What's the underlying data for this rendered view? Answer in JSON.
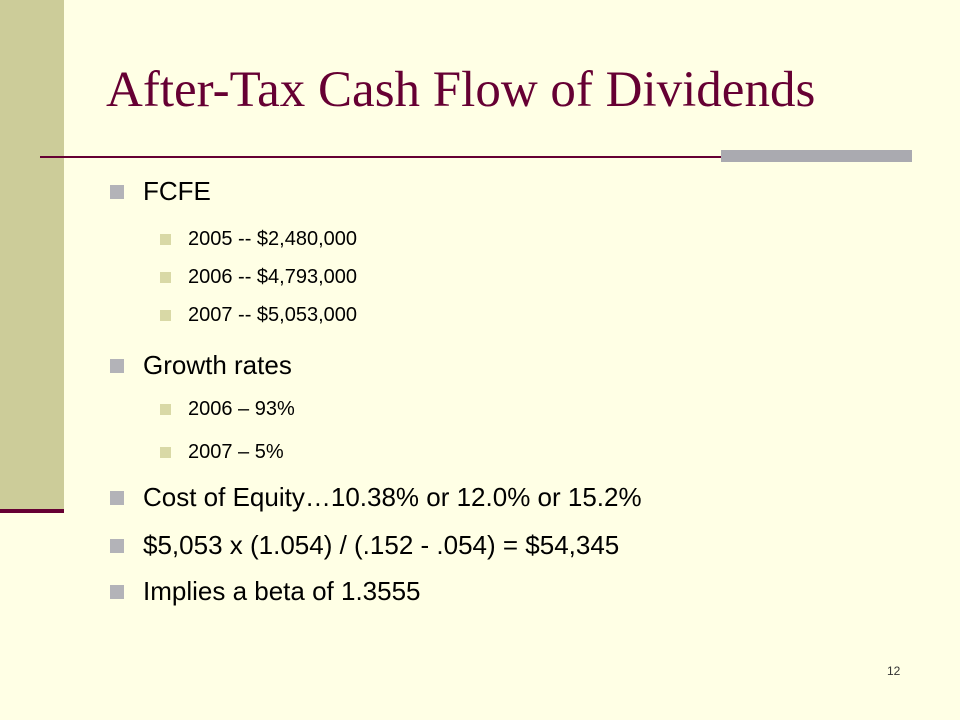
{
  "slide": {
    "title": "After-Tax Cash Flow of Dividends",
    "page_number": "12",
    "colors": {
      "background": "#FFFFE5",
      "accent_band": "#CCCC99",
      "title_color": "#660033",
      "bullet_l1": "#B3B3B8",
      "bullet_l2": "#D9D9A6"
    }
  },
  "bullets": [
    {
      "level": 1,
      "text": "FCFE"
    },
    {
      "level": 2,
      "text": "2005 -- $2,480,000"
    },
    {
      "level": 2,
      "text": "2006 -- $4,793,000"
    },
    {
      "level": 2,
      "text": "2007 -- $5,053,000"
    },
    {
      "level": 1,
      "text": "Growth rates"
    },
    {
      "level": 2,
      "text": "2006 – 93%"
    },
    {
      "level": 2,
      "text": "2007 – 5%"
    },
    {
      "level": 1,
      "text": "Cost of Equity…10.38% or 12.0% or 15.2%"
    },
    {
      "level": 1,
      "text": "$5,053 x (1.054) / (.152 - .054) = $54,345"
    },
    {
      "level": 1,
      "text": "Implies a beta of 1.3555"
    }
  ]
}
